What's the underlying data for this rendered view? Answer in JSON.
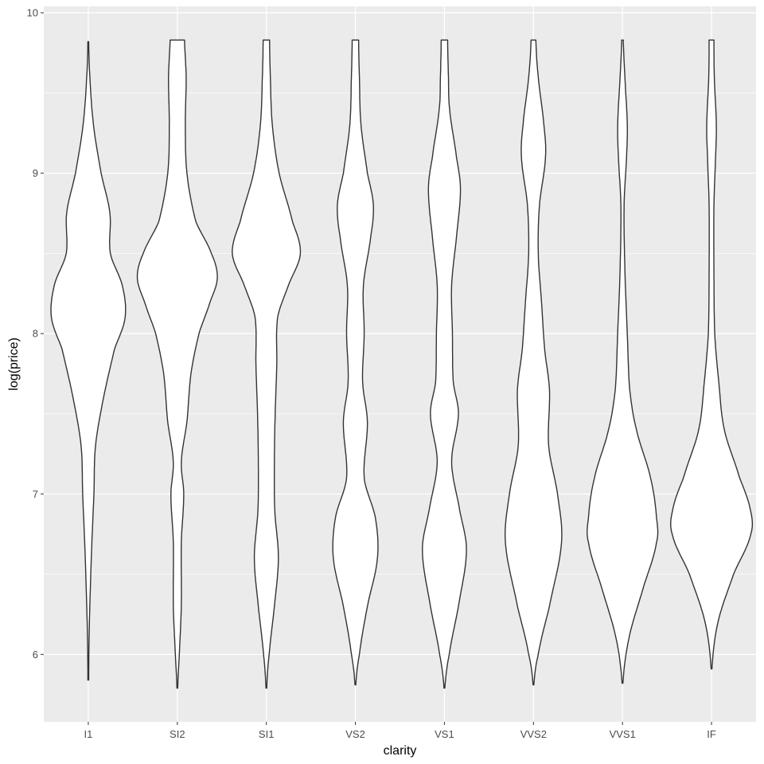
{
  "chart_data": {
    "type": "violin",
    "xlabel": "clarity",
    "ylabel": "log(price)",
    "categories": [
      "I1",
      "SI2",
      "SI1",
      "VS2",
      "VS1",
      "VVS2",
      "VVS1",
      "IF"
    ],
    "ylim": [
      5.58,
      10.04
    ],
    "yticks": [
      6,
      7,
      8,
      9,
      10
    ],
    "grid": true,
    "colors": {
      "panel": "#ebebeb",
      "grid_major": "#ffffff",
      "violin_fill": "#ffffff",
      "violin_stroke": "#333333"
    },
    "violins": [
      {
        "name": "I1",
        "min": 5.84,
        "max": 9.82,
        "density": [
          [
            5.84,
            0.01
          ],
          [
            6.1,
            0.02
          ],
          [
            6.4,
            0.05
          ],
          [
            6.7,
            0.09
          ],
          [
            7.0,
            0.14
          ],
          [
            7.3,
            0.18
          ],
          [
            7.6,
            0.38
          ],
          [
            7.9,
            0.65
          ],
          [
            8.1,
            0.92
          ],
          [
            8.3,
            0.85
          ],
          [
            8.5,
            0.55
          ],
          [
            8.75,
            0.54
          ],
          [
            9.0,
            0.32
          ],
          [
            9.3,
            0.13
          ],
          [
            9.6,
            0.04
          ],
          [
            9.82,
            0.01
          ]
        ]
      },
      {
        "name": "SI2",
        "min": 5.79,
        "max": 9.83,
        "density": [
          [
            5.79,
            0.01
          ],
          [
            6.0,
            0.05
          ],
          [
            6.3,
            0.1
          ],
          [
            6.7,
            0.1
          ],
          [
            7.0,
            0.16
          ],
          [
            7.2,
            0.1
          ],
          [
            7.45,
            0.24
          ],
          [
            7.75,
            0.34
          ],
          [
            8.0,
            0.54
          ],
          [
            8.2,
            0.82
          ],
          [
            8.35,
            1.0
          ],
          [
            8.5,
            0.85
          ],
          [
            8.7,
            0.46
          ],
          [
            9.0,
            0.24
          ],
          [
            9.3,
            0.2
          ],
          [
            9.6,
            0.22
          ],
          [
            9.83,
            0.18
          ]
        ]
      },
      {
        "name": "SI1",
        "min": 5.79,
        "max": 9.83,
        "density": [
          [
            5.79,
            0.01
          ],
          [
            6.0,
            0.07
          ],
          [
            6.3,
            0.2
          ],
          [
            6.6,
            0.3
          ],
          [
            6.9,
            0.21
          ],
          [
            7.2,
            0.2
          ],
          [
            7.5,
            0.22
          ],
          [
            7.8,
            0.26
          ],
          [
            8.1,
            0.28
          ],
          [
            8.3,
            0.55
          ],
          [
            8.5,
            0.85
          ],
          [
            8.7,
            0.65
          ],
          [
            9.0,
            0.32
          ],
          [
            9.3,
            0.15
          ],
          [
            9.6,
            0.1
          ],
          [
            9.83,
            0.08
          ]
        ]
      },
      {
        "name": "VS2",
        "min": 5.81,
        "max": 9.83,
        "density": [
          [
            5.81,
            0.01
          ],
          [
            6.0,
            0.1
          ],
          [
            6.3,
            0.3
          ],
          [
            6.6,
            0.55
          ],
          [
            6.85,
            0.5
          ],
          [
            7.1,
            0.22
          ],
          [
            7.45,
            0.3
          ],
          [
            7.7,
            0.18
          ],
          [
            8.0,
            0.22
          ],
          [
            8.3,
            0.2
          ],
          [
            8.6,
            0.38
          ],
          [
            8.8,
            0.45
          ],
          [
            9.0,
            0.3
          ],
          [
            9.3,
            0.14
          ],
          [
            9.6,
            0.1
          ],
          [
            9.83,
            0.08
          ]
        ]
      },
      {
        "name": "VS1",
        "min": 5.79,
        "max": 9.83,
        "density": [
          [
            5.79,
            0.01
          ],
          [
            6.0,
            0.12
          ],
          [
            6.3,
            0.35
          ],
          [
            6.65,
            0.55
          ],
          [
            6.9,
            0.38
          ],
          [
            7.2,
            0.18
          ],
          [
            7.5,
            0.35
          ],
          [
            7.7,
            0.22
          ],
          [
            8.0,
            0.2
          ],
          [
            8.3,
            0.18
          ],
          [
            8.6,
            0.3
          ],
          [
            8.9,
            0.4
          ],
          [
            9.1,
            0.3
          ],
          [
            9.4,
            0.13
          ],
          [
            9.6,
            0.1
          ],
          [
            9.83,
            0.08
          ]
        ]
      },
      {
        "name": "VVS2",
        "min": 5.81,
        "max": 9.83,
        "density": [
          [
            5.81,
            0.01
          ],
          [
            6.0,
            0.12
          ],
          [
            6.3,
            0.4
          ],
          [
            6.7,
            0.7
          ],
          [
            7.0,
            0.6
          ],
          [
            7.3,
            0.38
          ],
          [
            7.65,
            0.4
          ],
          [
            7.9,
            0.28
          ],
          [
            8.2,
            0.2
          ],
          [
            8.5,
            0.12
          ],
          [
            8.8,
            0.15
          ],
          [
            9.1,
            0.3
          ],
          [
            9.3,
            0.26
          ],
          [
            9.6,
            0.12
          ],
          [
            9.83,
            0.06
          ]
        ]
      },
      {
        "name": "VVS1",
        "min": 5.82,
        "max": 9.83,
        "density": [
          [
            5.82,
            0.01
          ],
          [
            6.1,
            0.16
          ],
          [
            6.4,
            0.5
          ],
          [
            6.7,
            0.85
          ],
          [
            6.85,
            0.85
          ],
          [
            7.1,
            0.7
          ],
          [
            7.4,
            0.35
          ],
          [
            7.65,
            0.18
          ],
          [
            8.0,
            0.12
          ],
          [
            8.4,
            0.06
          ],
          [
            8.8,
            0.04
          ],
          [
            9.1,
            0.1
          ],
          [
            9.3,
            0.12
          ],
          [
            9.6,
            0.06
          ],
          [
            9.83,
            0.02
          ]
        ]
      },
      {
        "name": "IF",
        "min": 5.91,
        "max": 9.83,
        "density": [
          [
            5.91,
            0.01
          ],
          [
            6.2,
            0.16
          ],
          [
            6.5,
            0.55
          ],
          [
            6.75,
            0.98
          ],
          [
            6.9,
            0.97
          ],
          [
            7.1,
            0.7
          ],
          [
            7.4,
            0.32
          ],
          [
            7.7,
            0.18
          ],
          [
            8.0,
            0.08
          ],
          [
            8.4,
            0.06
          ],
          [
            8.8,
            0.06
          ],
          [
            9.1,
            0.1
          ],
          [
            9.3,
            0.12
          ],
          [
            9.6,
            0.07
          ],
          [
            9.83,
            0.06
          ]
        ]
      }
    ]
  }
}
